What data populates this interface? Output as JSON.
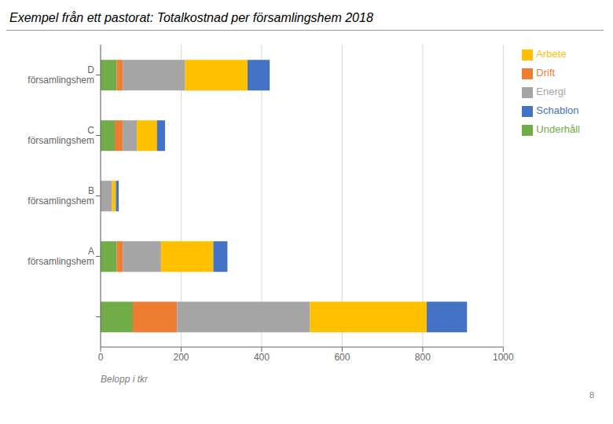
{
  "chart_data": {
    "type": "bar",
    "orientation": "horizontal",
    "stacked": true,
    "title": "Exempel från ett pastorat: Totalkostnad per församlingshem 2018",
    "x_label": "Belopp i tkr",
    "annotations": [
      "8"
    ],
    "categories": [
      "D\nförsamlingshem",
      "C\nförsamlingshem",
      "B\nförsamlingshem",
      "A\nförsamlingshem",
      null
    ],
    "series": [
      {
        "name": "Underhåll",
        "color": "#70AD47",
        "values": [
          40,
          35,
          0,
          40,
          80
        ]
      },
      {
        "name": "Drift",
        "color": "#ED7D31",
        "values": [
          15,
          20,
          0,
          15,
          110
        ]
      },
      {
        "name": "Energi",
        "color": "#A5A5A5",
        "values": [
          155,
          35,
          28,
          95,
          330
        ]
      },
      {
        "name": "Arbete",
        "color": "#FFC000",
        "values": [
          155,
          50,
          10,
          130,
          290
        ]
      },
      {
        "name": "Schablon",
        "color": "#4472C4",
        "values": [
          55,
          20,
          7,
          35,
          100
        ]
      }
    ],
    "xlim": [
      0,
      1000
    ],
    "xticks": [
      0,
      200,
      400,
      600,
      800,
      1000
    ],
    "grid": "x",
    "legend": "right"
  }
}
